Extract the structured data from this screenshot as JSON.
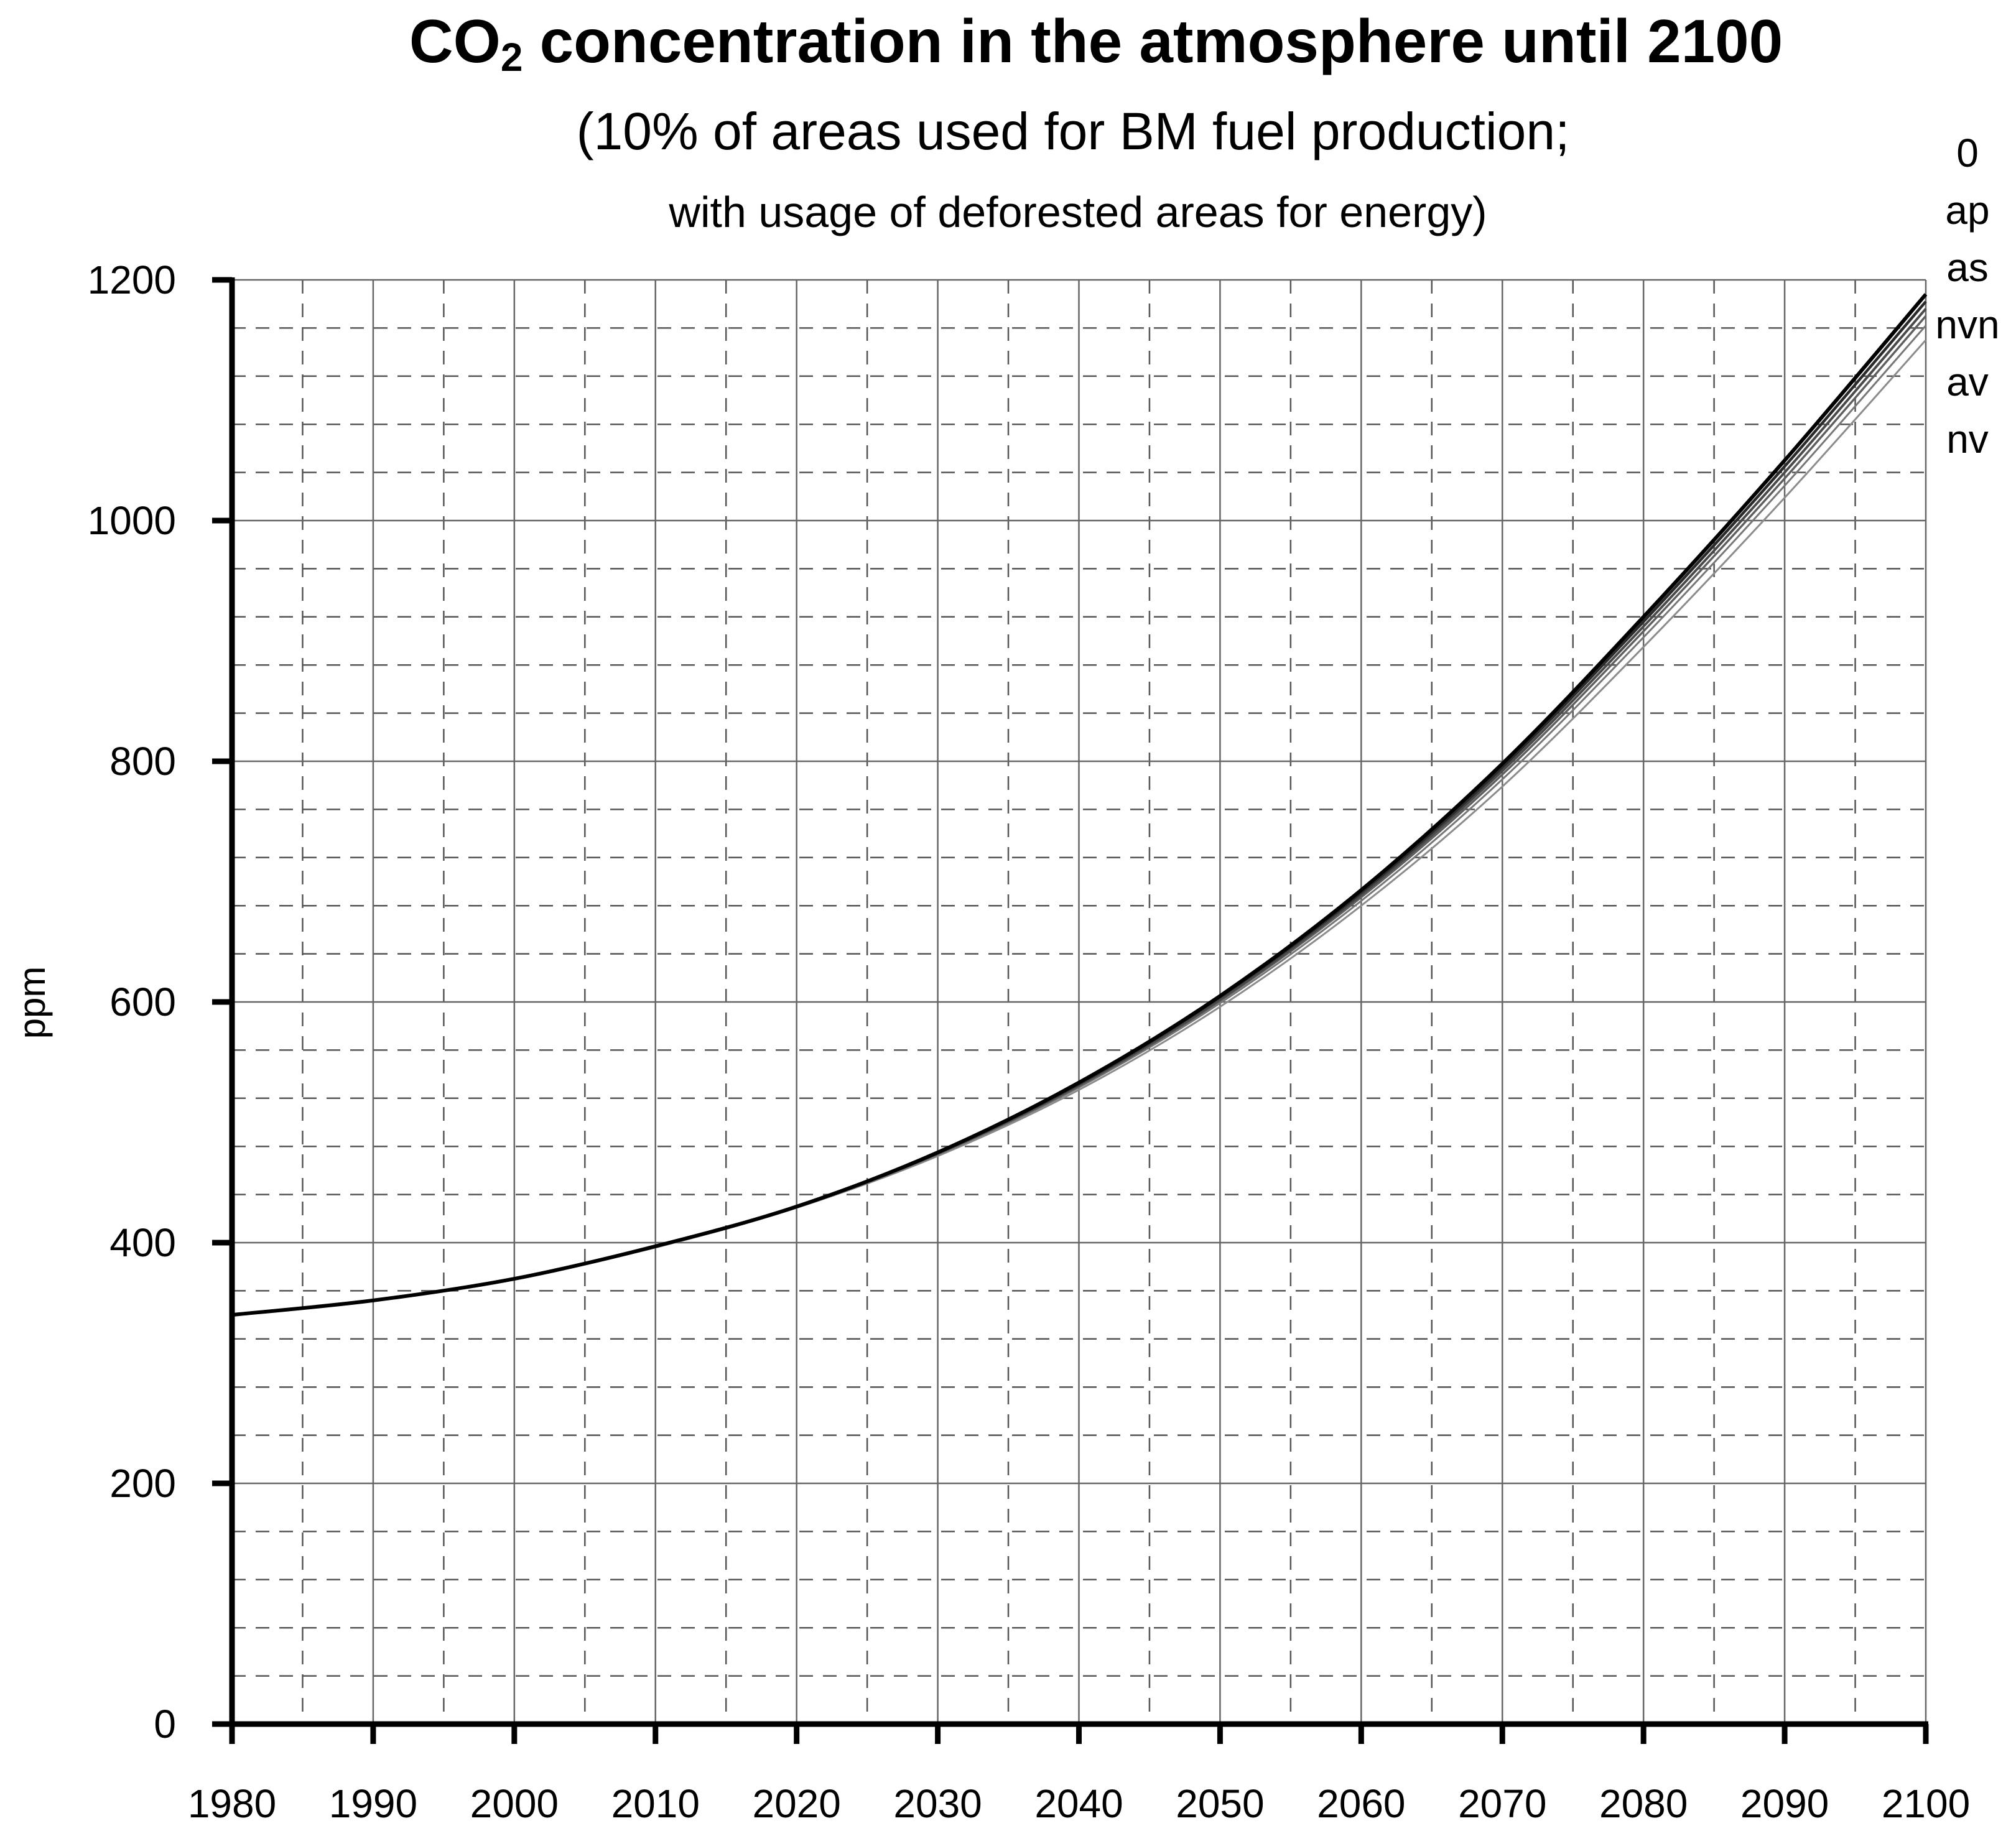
{
  "chart_data": {
    "type": "line",
    "title": {
      "prefix": "CO",
      "subscript": "2",
      "suffix": " concentration in the atmosphere until 2100"
    },
    "subtitle_line1": "(10% of areas used for BM fuel production;",
    "subtitle_line2": "with usage of deforested areas for energy)",
    "xlabel": "",
    "ylabel": "ppm",
    "xlim": [
      1980,
      2100
    ],
    "ylim": [
      0,
      1200
    ],
    "x_ticks": [
      1980,
      1990,
      2000,
      2010,
      2020,
      2030,
      2040,
      2050,
      2060,
      2070,
      2080,
      2090,
      2100
    ],
    "y_ticks": [
      0,
      200,
      400,
      600,
      800,
      1000,
      1200
    ],
    "x_tick_labels": [
      "1980",
      "1990",
      "2000",
      "2010",
      "2020",
      "2030",
      "2040",
      "2050",
      "2060",
      "2070",
      "2080",
      "2090",
      "2100"
    ],
    "y_tick_labels": [
      "0",
      "200",
      "400",
      "600",
      "800",
      "1000",
      "1200"
    ],
    "x_minor_step": 5,
    "y_minor_step": 40,
    "grid": true,
    "legend_position": "right, beside line ends",
    "x": [
      1980,
      1990,
      2000,
      2010,
      2020,
      2030,
      2040,
      2050,
      2060,
      2070,
      2080,
      2090,
      2100
    ],
    "series": [
      {
        "name": "0",
        "color": "#000000",
        "values": [
          340,
          352,
          370,
          397,
          430,
          475,
          533,
          605,
          693,
          798,
          920,
          1050,
          1188
        ]
      },
      {
        "name": "ap",
        "color": "#2b2b2b",
        "values": [
          340,
          352,
          370,
          397,
          430,
          475,
          532,
          604,
          691,
          795,
          916,
          1045,
          1182
        ]
      },
      {
        "name": "as",
        "color": "#4a4a4a",
        "values": [
          340,
          352,
          370,
          397,
          430,
          474,
          531,
          602,
          689,
          792,
          912,
          1040,
          1176
        ]
      },
      {
        "name": "nvn",
        "color": "#5f5f5f",
        "values": [
          340,
          352,
          370,
          397,
          430,
          474,
          530,
          601,
          687,
          789,
          908,
          1035,
          1170
        ]
      },
      {
        "name": "av",
        "color": "#777777",
        "values": [
          340,
          352,
          370,
          397,
          429,
          473,
          529,
          599,
          684,
          785,
          903,
          1029,
          1162
        ]
      },
      {
        "name": "nv",
        "color": "#8c8c8c",
        "values": [
          340,
          352,
          370,
          396,
          429,
          472,
          527,
          596,
          680,
          779,
          895,
          1019,
          1150
        ]
      }
    ]
  }
}
